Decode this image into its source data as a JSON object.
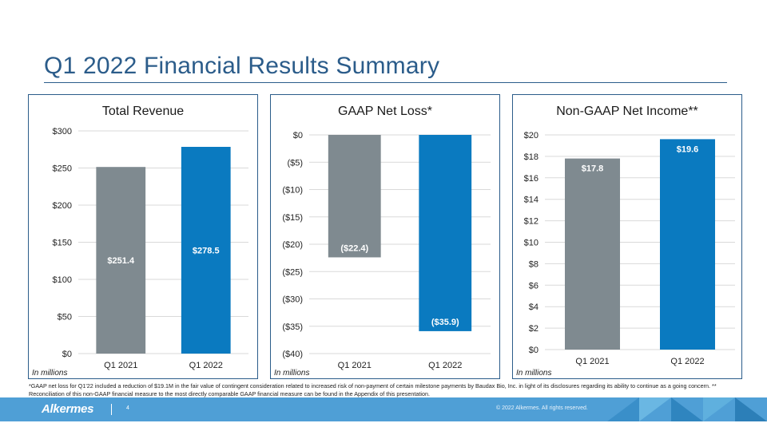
{
  "slide": {
    "title": "Q1 2022 Financial Results Summary",
    "footnote": "*GAAP net loss for Q1'22 included a reduction of $19.1M in the fair value of contingent consideration related to increased risk of non-payment of certain milestone payments by Baudax Bio, Inc. in light of its disclosures regarding its ability to continue as a going concern. ** Reconciliation of this non-GAAP financial measure to the most directly comparable GAAP financial measure can be found in the Appendix of this presentation.",
    "logo_text": "Alkermes",
    "page_number": "4",
    "copyright": "© 2022 Alkermes. All rights reserved."
  },
  "colors": {
    "q1_2021": "#7f8a90",
    "q1_2022": "#0a7ac0",
    "accent": "#2b5c8a",
    "footer": "#4f9fd6"
  },
  "chart_data": [
    {
      "type": "bar",
      "title": "Total Revenue",
      "unit_note": "In millions",
      "categories": [
        "Q1 2021",
        "Q1 2022"
      ],
      "values": [
        251.4,
        278.5
      ],
      "data_labels": [
        "$251.4",
        "$278.5"
      ],
      "yticks": [
        0,
        50,
        100,
        150,
        200,
        250,
        300
      ],
      "ytick_labels": [
        "$0",
        "$50",
        "$100",
        "$150",
        "$200",
        "$250",
        "$300"
      ],
      "ylim": [
        0,
        300
      ],
      "label_position": "middle",
      "grid": true
    },
    {
      "type": "bar",
      "title": "GAAP Net Loss*",
      "unit_note": "In millions",
      "categories": [
        "Q1 2021",
        "Q1 2022"
      ],
      "values": [
        -22.4,
        -35.9
      ],
      "data_labels": [
        "($22.4)",
        "($35.9)"
      ],
      "yticks": [
        0,
        -5,
        -10,
        -15,
        -20,
        -25,
        -30,
        -35,
        -40
      ],
      "ytick_labels": [
        "$0",
        "($5)",
        "($10)",
        "($15)",
        "($20)",
        "($25)",
        "($30)",
        "($35)",
        "($40)"
      ],
      "ylim": [
        -40,
        0
      ],
      "label_position": "end",
      "grid": true
    },
    {
      "type": "bar",
      "title": "Non-GAAP Net Income**",
      "unit_note": "In millions",
      "categories": [
        "Q1 2021",
        "Q1 2022"
      ],
      "values": [
        17.8,
        19.6
      ],
      "data_labels": [
        "$17.8",
        "$19.6"
      ],
      "yticks": [
        0,
        2,
        4,
        6,
        8,
        10,
        12,
        14,
        16,
        18,
        20
      ],
      "ytick_labels": [
        "$0",
        "$2",
        "$4",
        "$6",
        "$8",
        "$10",
        "$12",
        "$14",
        "$16",
        "$18",
        "$20"
      ],
      "ylim": [
        0,
        20
      ],
      "label_position": "end",
      "grid": true
    }
  ]
}
